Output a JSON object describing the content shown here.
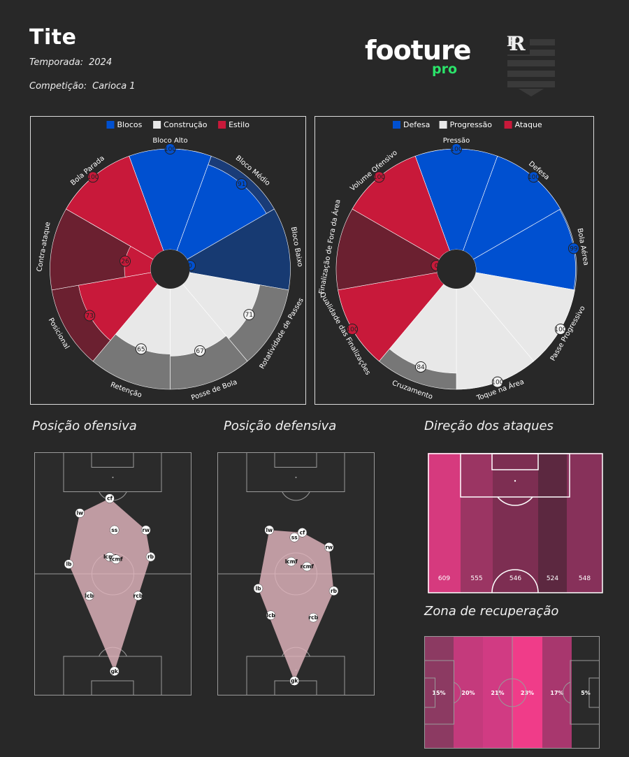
{
  "header": {
    "coach": "Tite",
    "season_label": "Temporada:",
    "season": "2024",
    "competition_label": "Competição:",
    "competition": "Carioca 1",
    "brand_a": "footure",
    "brand_b": "pro",
    "brand_color": "#2be36a"
  },
  "sections": {
    "offensive": "Posição ofensiva",
    "defensive": "Posição defensiva",
    "attacks": "Direção dos ataques",
    "recovery": "Zona de recuperação"
  },
  "chart_data": [
    {
      "type": "polar-bar",
      "legend": [
        {
          "name": "Blocos",
          "color": "#0050d0"
        },
        {
          "name": "Construção",
          "color": "#e8e8e8"
        },
        {
          "name": "Estilo",
          "color": "#c8193a"
        }
      ],
      "max": 100,
      "categories": [
        {
          "label": "Bloco Alto",
          "value": 100,
          "color": "#0050d0",
          "dark": "#0b3d8a"
        },
        {
          "label": "Bloco Médio",
          "value": 91,
          "color": "#0050d0",
          "dark": "#1a3c78"
        },
        {
          "label": "Bloco Baixo",
          "value": 0,
          "color": "#0050d0",
          "dark": "#173a72"
        },
        {
          "label": "Rotatividade de Passes",
          "value": 71,
          "color": "#e8e8e8",
          "dark": "#777777"
        },
        {
          "label": "Posse de Bola",
          "value": 67,
          "color": "#e8e8e8",
          "dark": "#777777"
        },
        {
          "label": "Retenção",
          "value": 65,
          "color": "#e8e8e8",
          "dark": "#777777"
        },
        {
          "label": "Posicional",
          "value": 73,
          "color": "#c8193a",
          "dark": "#6b2030"
        },
        {
          "label": "Contra-ataque",
          "value": 26,
          "color": "#c8193a",
          "dark": "#6b2030"
        },
        {
          "label": "Bola Parada",
          "value": 100,
          "color": "#c8193a",
          "dark": "#6b2030"
        }
      ]
    },
    {
      "type": "polar-bar",
      "legend": [
        {
          "name": "Defesa",
          "color": "#0050d0"
        },
        {
          "name": "Progressão",
          "color": "#e8e8e8"
        },
        {
          "name": "Ataque",
          "color": "#c8193a"
        }
      ],
      "max": 100,
      "categories": [
        {
          "label": "Pressão",
          "value": 100,
          "color": "#0050d0",
          "dark": "#173a72"
        },
        {
          "label": "Defesa",
          "value": 100,
          "color": "#0050d0",
          "dark": "#173a72"
        },
        {
          "label": "Bola Aérea",
          "value": 99,
          "color": "#0050d0",
          "dark": "#173a72"
        },
        {
          "label": "Passe Progressivo",
          "value": 100,
          "color": "#e8e8e8",
          "dark": "#777777"
        },
        {
          "label": "Toque na Área",
          "value": 100,
          "color": "#e8e8e8",
          "dark": "#777777"
        },
        {
          "label": "Cruzamento",
          "value": 84,
          "color": "#e8e8e8",
          "dark": "#777777"
        },
        {
          "label": "Qualidade das Finalizações",
          "value": 100,
          "color": "#c8193a",
          "dark": "#6b2030"
        },
        {
          "label": "Finalização de Fora da Área",
          "value": 0,
          "color": "#c8193a",
          "dark": "#6b2030"
        },
        {
          "label": "Volume Ofensivo",
          "value": 100,
          "color": "#c8193a",
          "dark": "#6b2030"
        }
      ]
    },
    {
      "type": "scatter",
      "name": "offensive-positions",
      "xlim": [
        0,
        100
      ],
      "ylim": [
        0,
        100
      ],
      "points": [
        {
          "label": "cf",
          "x": 48,
          "y": 81
        },
        {
          "label": "lw",
          "x": 29,
          "y": 75
        },
        {
          "label": "ss",
          "x": 51,
          "y": 68
        },
        {
          "label": "rw",
          "x": 71,
          "y": 68
        },
        {
          "label": "lcmf",
          "x": 48,
          "y": 57
        },
        {
          "label": "rcmf",
          "x": 52,
          "y": 56
        },
        {
          "label": "rb",
          "x": 74,
          "y": 57
        },
        {
          "label": "lb",
          "x": 22,
          "y": 54
        },
        {
          "label": "lcb",
          "x": 35,
          "y": 41
        },
        {
          "label": "rcb",
          "x": 66,
          "y": 41
        },
        {
          "label": "gk",
          "x": 51,
          "y": 10
        }
      ]
    },
    {
      "type": "scatter",
      "name": "defensive-positions",
      "xlim": [
        0,
        100
      ],
      "ylim": [
        0,
        100
      ],
      "points": [
        {
          "label": "lw",
          "x": 33,
          "y": 68
        },
        {
          "label": "cf",
          "x": 54,
          "y": 67
        },
        {
          "label": "ss",
          "x": 49,
          "y": 65
        },
        {
          "label": "rw",
          "x": 71,
          "y": 61
        },
        {
          "label": "lcmf",
          "x": 47,
          "y": 55
        },
        {
          "label": "rcmf",
          "x": 57,
          "y": 53
        },
        {
          "label": "lb",
          "x": 26,
          "y": 44
        },
        {
          "label": "rb",
          "x": 74,
          "y": 43
        },
        {
          "label": "lcb",
          "x": 34,
          "y": 33
        },
        {
          "label": "rcb",
          "x": 61,
          "y": 32
        },
        {
          "label": "gk",
          "x": 49,
          "y": 6
        }
      ]
    },
    {
      "type": "heatmap",
      "name": "attack-direction",
      "categories": [
        "zone-1",
        "zone-2",
        "zone-3",
        "zone-4",
        "zone-5"
      ],
      "values": [
        609,
        555,
        546,
        524,
        548
      ],
      "colors": [
        "#d63a7e",
        "#9b3563",
        "#7d2e52",
        "#5c2840",
        "#87315a"
      ]
    },
    {
      "type": "heatmap",
      "name": "recovery-zone",
      "categories": [
        "zone-1",
        "zone-2",
        "zone-3",
        "zone-4",
        "zone-5",
        "zone-6"
      ],
      "values": [
        "15%",
        "20%",
        "21%",
        "23%",
        "17%",
        "5%"
      ],
      "colors": [
        "#8c3a62",
        "#c43a7c",
        "#d13b83",
        "#f03c89",
        "#a8376e",
        "#2a2a2a"
      ]
    }
  ]
}
